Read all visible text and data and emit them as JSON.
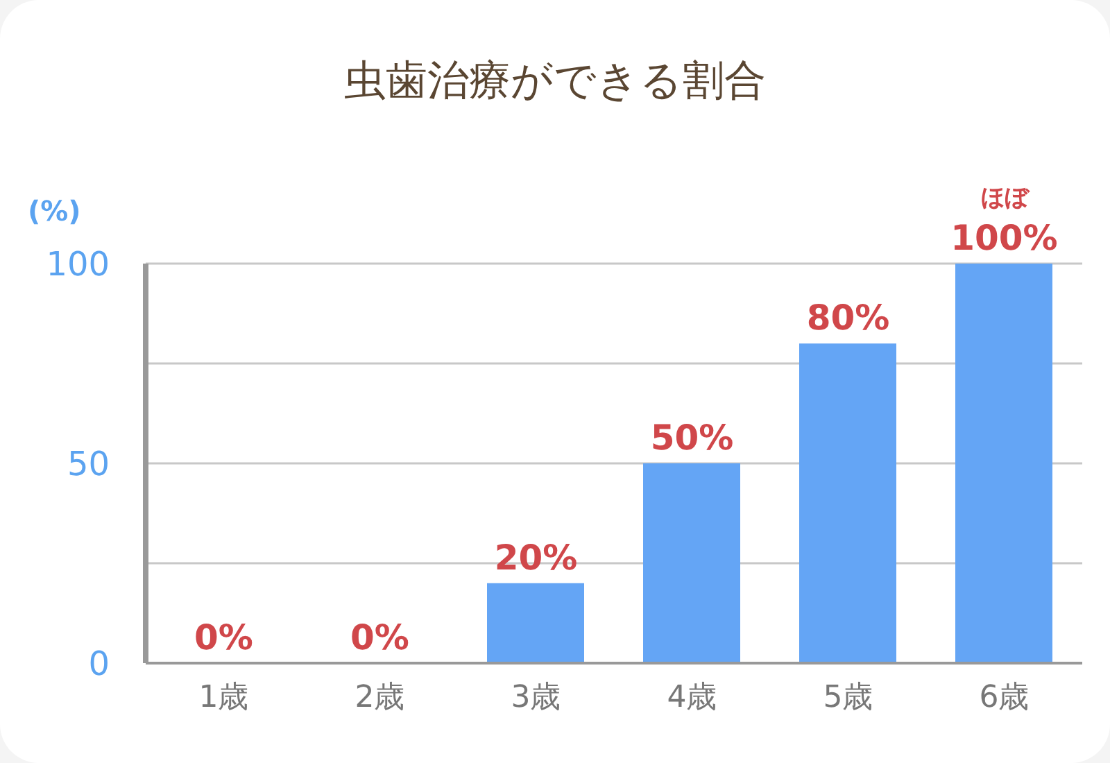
{
  "chart_data": {
    "type": "bar",
    "title": "虫歯治療ができる割合",
    "ylabel": "(%)",
    "categories": [
      "1歳",
      "2歳",
      "3歳",
      "4歳",
      "5歳",
      "6歳"
    ],
    "values": [
      0,
      0,
      20,
      50,
      80,
      100
    ],
    "color": "#64a5f5",
    "value_labels": [
      "0%",
      "0%",
      "20%",
      "50%",
      "80%",
      "100%"
    ],
    "annotations": [
      {
        "text": "ほぼ",
        "x": "6歳",
        "y": 100
      }
    ],
    "ylim": [
      0,
      100
    ],
    "yticks": [
      0,
      {
        "value": 25,
        "label": null
      },
      50,
      {
        "value": 75,
        "label": null
      },
      100
    ],
    "grid": "y"
  }
}
